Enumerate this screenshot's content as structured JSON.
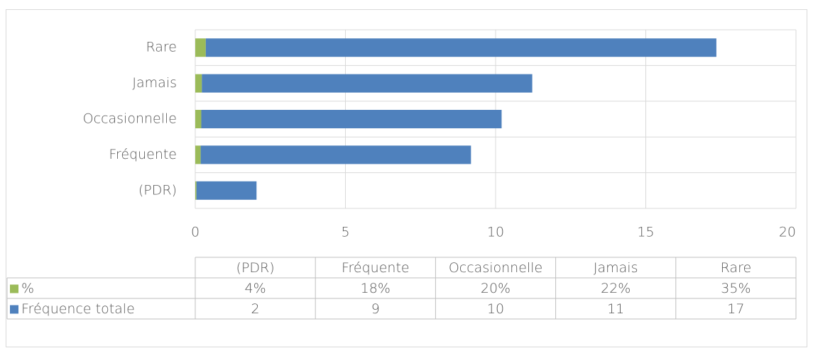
{
  "chart_data": {
    "type": "bar",
    "orientation": "horizontal",
    "stacked": true,
    "data_table": true,
    "categories": [
      "(PDR)",
      "Fréquente",
      "Occasionnelle",
      "Jamais",
      "Rare"
    ],
    "series": [
      {
        "name": "%",
        "color": "#9bbb59",
        "values": [
          0.04,
          0.18,
          0.2,
          0.22,
          0.35
        ],
        "value_labels": [
          "4%",
          "18%",
          "20%",
          "22%",
          "35%"
        ]
      },
      {
        "name": "Fréquence totale",
        "color": "#4f81bd",
        "values": [
          2,
          9,
          10,
          11,
          17
        ]
      }
    ],
    "xlim": [
      0,
      20
    ],
    "xticks": [
      0,
      5,
      10,
      15,
      20
    ],
    "grid": true
  }
}
